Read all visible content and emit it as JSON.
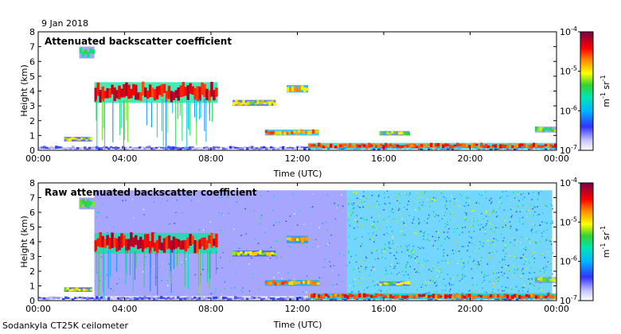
{
  "date_label": "9 Jan 2018",
  "footer": "Sodankyla CT25K ceilometer",
  "colorbar": {
    "tick_labels": [
      "10",
      "10",
      "10",
      "10"
    ],
    "tick_exponents": [
      "-4",
      "-5",
      "-6",
      "-7"
    ],
    "tick_values": [
      -4,
      -5,
      -6,
      -7
    ],
    "range_log10": [
      -7,
      -4
    ],
    "unit_m": "m",
    "unit_m_exp": "-1",
    "unit_sr": "sr",
    "unit_sr_exp": "-1"
  },
  "chart_data": [
    {
      "type": "heatmap",
      "title": "Attenuated backscatter coefficient",
      "xlabel": "Time (UTC)",
      "ylabel": "Height (km)",
      "x_ticks": [
        "00:00",
        "04:00",
        "08:00",
        "12:00",
        "16:00",
        "20:00",
        "00:00"
      ],
      "x_tick_hours": [
        0,
        4,
        8,
        12,
        16,
        20,
        24
      ],
      "y_ticks": [
        "0",
        "1",
        "2",
        "3",
        "4",
        "5",
        "6",
        "7",
        "8"
      ],
      "ylim": [
        0,
        8
      ],
      "xlim_hours": [
        0,
        24
      ],
      "noise_background": false,
      "features": [
        {
          "name": "boundary-layer",
          "t0": 0,
          "t1": 24,
          "h0": 0,
          "h1": 0.3,
          "level": -6.8
        },
        {
          "name": "upper-cloud",
          "t0": 2.6,
          "t1": 8.3,
          "h0": 3.2,
          "h1": 4.6,
          "level": -4.6
        },
        {
          "name": "high-cloud-patch",
          "t0": 1.9,
          "t1": 2.6,
          "h0": 6.2,
          "h1": 7.0,
          "level": -5.6
        },
        {
          "name": "mid-cloud-9-11h",
          "t0": 9.0,
          "t1": 11.0,
          "h0": 3.0,
          "h1": 3.4,
          "level": -5.3
        },
        {
          "name": "mid-cloud-11-12h",
          "t0": 11.5,
          "t1": 12.5,
          "h0": 3.9,
          "h1": 4.4,
          "level": -5.1
        },
        {
          "name": "low-cloud-10-13h",
          "t0": 10.5,
          "t1": 13.0,
          "h0": 1.0,
          "h1": 1.4,
          "level": -5.0
        },
        {
          "name": "low-cloud-early",
          "t0": 1.2,
          "t1": 2.5,
          "h0": 0.6,
          "h1": 0.9,
          "level": -5.4
        },
        {
          "name": "descending-layer",
          "t0": 12.5,
          "t1": 24,
          "h0": 0.1,
          "h1": 0.5,
          "level": -4.8
        },
        {
          "name": "cloud-16h",
          "t0": 15.8,
          "t1": 17.2,
          "h0": 1.0,
          "h1": 1.3,
          "level": -5.5
        },
        {
          "name": "cloud-23h",
          "t0": 23.0,
          "t1": 24,
          "h0": 1.2,
          "h1": 1.6,
          "level": -5.6
        }
      ]
    },
    {
      "type": "heatmap",
      "title": "Raw attenuated backscatter coefficient",
      "xlabel": "Time (UTC)",
      "ylabel": "Height (km)",
      "x_ticks": [
        "00:00",
        "04:00",
        "08:00",
        "12:00",
        "16:00",
        "20:00",
        "00:00"
      ],
      "x_tick_hours": [
        0,
        4,
        8,
        12,
        16,
        20,
        24
      ],
      "y_ticks": [
        "0",
        "1",
        "2",
        "3",
        "4",
        "5",
        "6",
        "7",
        "8"
      ],
      "ylim": [
        0,
        8
      ],
      "xlim_hours": [
        0,
        24
      ],
      "noise_background": true,
      "features": [
        {
          "name": "boundary-layer",
          "t0": 0,
          "t1": 24,
          "h0": 0,
          "h1": 0.3,
          "level": -6.8
        },
        {
          "name": "upper-cloud",
          "t0": 2.6,
          "t1": 8.3,
          "h0": 3.2,
          "h1": 4.6,
          "level": -4.6
        },
        {
          "name": "high-cloud-patch",
          "t0": 1.9,
          "t1": 2.6,
          "h0": 6.2,
          "h1": 7.0,
          "level": -5.6
        },
        {
          "name": "mid-cloud-9-11h",
          "t0": 9.0,
          "t1": 11.0,
          "h0": 3.0,
          "h1": 3.4,
          "level": -5.3
        },
        {
          "name": "mid-cloud-11-12h",
          "t0": 11.5,
          "t1": 12.5,
          "h0": 3.9,
          "h1": 4.4,
          "level": -5.1
        },
        {
          "name": "low-cloud-10-13h",
          "t0": 10.5,
          "t1": 13.0,
          "h0": 1.0,
          "h1": 1.4,
          "level": -5.0
        },
        {
          "name": "low-cloud-early",
          "t0": 1.2,
          "t1": 2.5,
          "h0": 0.6,
          "h1": 0.9,
          "level": -5.4
        },
        {
          "name": "descending-layer",
          "t0": 12.5,
          "t1": 24,
          "h0": 0.1,
          "h1": 0.5,
          "level": -4.8
        },
        {
          "name": "cloud-16h",
          "t0": 15.8,
          "t1": 17.2,
          "h0": 1.0,
          "h1": 1.3,
          "level": -5.5
        },
        {
          "name": "cloud-23h",
          "t0": 23.0,
          "t1": 24,
          "h0": 1.2,
          "h1": 1.6,
          "level": -5.6
        }
      ],
      "noise_regions": [
        {
          "name": "light-noise",
          "t0": 2.6,
          "t1": 14.3,
          "level": -6.5
        },
        {
          "name": "dense-noise",
          "t0": 14.3,
          "t1": 23.8,
          "level": -6.0
        }
      ]
    }
  ]
}
